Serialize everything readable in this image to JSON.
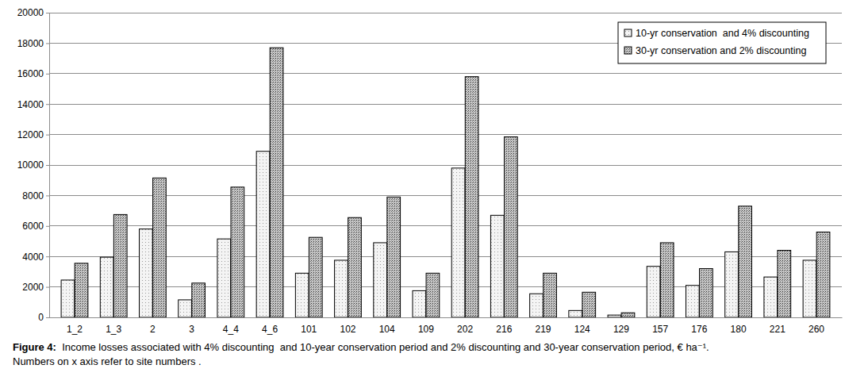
{
  "chart_data": {
    "type": "bar",
    "title": [
      "Figure 4:  Income losses associated with 4% discounting  and 10-year conservation period and 2% discounting and 30-year conservation period, € ha⁻¹.",
      "Numbers on x axis refer to site numbers ."
    ],
    "categories": [
      "1_2",
      "1_3",
      "2",
      "3",
      "4_4",
      "4_6",
      "101",
      "102",
      "104",
      "109",
      "202",
      "216",
      "219",
      "124",
      "129",
      "157",
      "176",
      "180",
      "221",
      "260"
    ],
    "series": [
      {
        "name": "10-yr conservation  and 4% discounting",
        "color": "#f4f4f4",
        "values": [
          2450,
          3950,
          5800,
          1150,
          5150,
          10900,
          2900,
          3750,
          4900,
          1750,
          9800,
          6700,
          1550,
          450,
          150,
          3350,
          2100,
          4300,
          2650,
          3750
        ]
      },
      {
        "name": "30-yr conservation and 2% discounting",
        "color": "#c8c8c8",
        "values": [
          3550,
          6750,
          9150,
          2250,
          8550,
          17700,
          5250,
          6550,
          7900,
          2900,
          15800,
          11850,
          2900,
          1650,
          300,
          4900,
          3200,
          7300,
          4400,
          5600
        ]
      }
    ],
    "ylim": [
      0,
      20000
    ],
    "yticks": [
      0,
      2000,
      4000,
      6000,
      8000,
      10000,
      12000,
      14000,
      16000,
      18000,
      20000
    ],
    "grid": true,
    "legend": "top-right"
  }
}
